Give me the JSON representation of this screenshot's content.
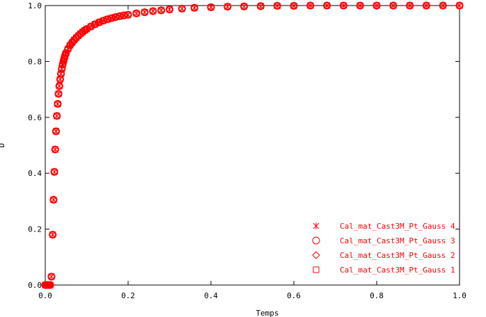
{
  "chart_data": {
    "type": "scatter",
    "xlabel": "Temps",
    "ylabel": "D",
    "xlim": [
      0.0,
      1.0
    ],
    "ylim": [
      0.0,
      1.0
    ],
    "x_ticks": [
      "0.0",
      "0.2",
      "0.4",
      "0.6",
      "0.8",
      "1.0"
    ],
    "y_ticks": [
      "0.0",
      "0.2",
      "0.4",
      "0.6",
      "0.8",
      "1.0"
    ],
    "grid": false,
    "legend_position": "bottom-right",
    "marker_color": "#ff0000",
    "series": [
      {
        "name": "Cal_mat_Cast3M_Pt_Gauss 4",
        "marker": "asterisk"
      },
      {
        "name": "Cal_mat_Cast3M_Pt_Gauss 3",
        "marker": "circle"
      },
      {
        "name": "Cal_mat_Cast3M_Pt_Gauss 2",
        "marker": "diamond"
      },
      {
        "name": "Cal_mat_Cast3M_Pt_Gauss 1",
        "marker": "square"
      }
    ],
    "x": [
      0.0,
      0.002,
      0.004,
      0.006,
      0.008,
      0.01,
      0.012,
      0.015,
      0.018,
      0.02,
      0.022,
      0.024,
      0.026,
      0.028,
      0.03,
      0.032,
      0.034,
      0.036,
      0.038,
      0.04,
      0.042,
      0.044,
      0.046,
      0.048,
      0.05,
      0.055,
      0.06,
      0.065,
      0.07,
      0.075,
      0.08,
      0.085,
      0.09,
      0.095,
      0.1,
      0.11,
      0.12,
      0.13,
      0.14,
      0.15,
      0.16,
      0.17,
      0.18,
      0.19,
      0.2,
      0.22,
      0.24,
      0.26,
      0.28,
      0.3,
      0.33,
      0.36,
      0.4,
      0.44,
      0.48,
      0.52,
      0.56,
      0.6,
      0.64,
      0.68,
      0.72,
      0.76,
      0.8,
      0.84,
      0.88,
      0.92,
      0.96,
      1.0
    ],
    "y": [
      0.0,
      0.0,
      0.0,
      0.0,
      0.0,
      0.0,
      0.0,
      0.03,
      0.18,
      0.305,
      0.405,
      0.485,
      0.55,
      0.605,
      0.648,
      0.684,
      0.712,
      0.736,
      0.756,
      0.774,
      0.789,
      0.801,
      0.812,
      0.822,
      0.83,
      0.845,
      0.858,
      0.868,
      0.877,
      0.885,
      0.892,
      0.899,
      0.905,
      0.911,
      0.916,
      0.925,
      0.933,
      0.94,
      0.946,
      0.951,
      0.955,
      0.959,
      0.962,
      0.965,
      0.967,
      0.972,
      0.976,
      0.98,
      0.983,
      0.986,
      0.989,
      0.992,
      0.994,
      0.996,
      0.997,
      0.998,
      0.999,
      0.999,
      1.0,
      1.0,
      1.0,
      1.0,
      1.0,
      1.0,
      1.0,
      1.0,
      1.0,
      1.0
    ]
  }
}
